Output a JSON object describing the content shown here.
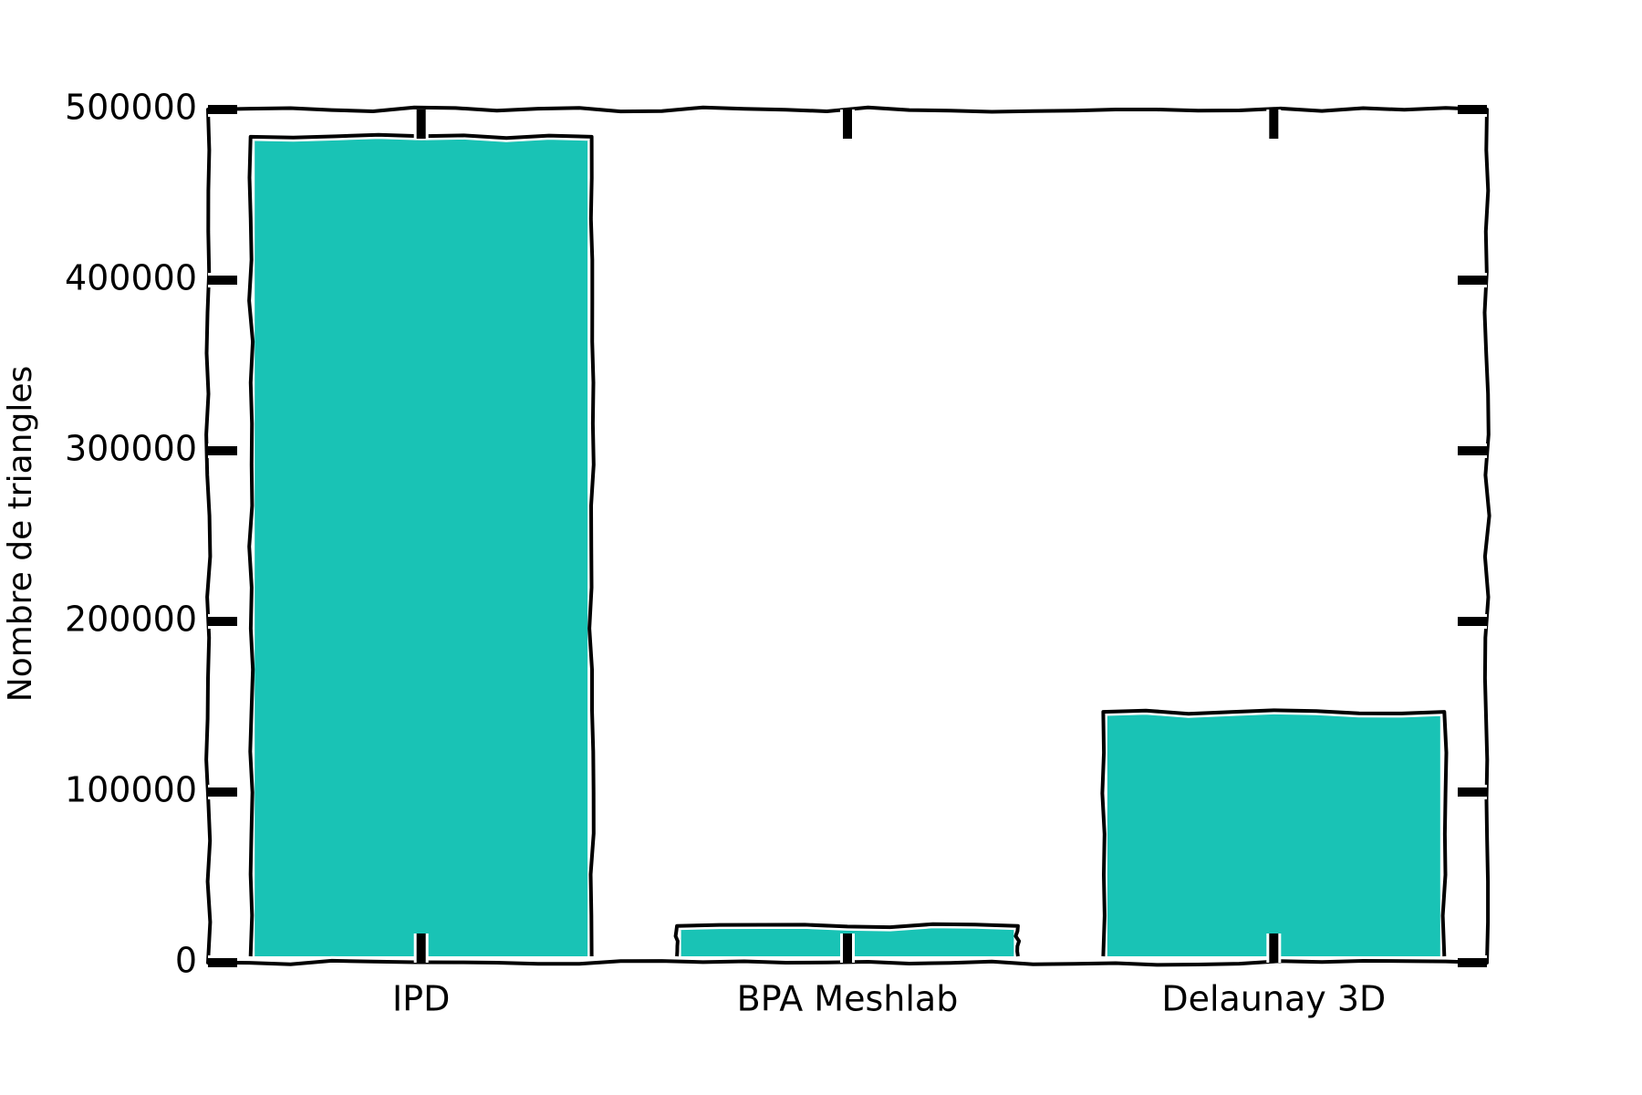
{
  "chart_data": {
    "type": "bar",
    "categories": [
      "IPD",
      "BPA Meshlab",
      "Delaunay 3D"
    ],
    "values": [
      484000,
      21500,
      147000
    ],
    "title": "",
    "xlabel": "",
    "ylabel": "Nombre de triangles",
    "ylim": [
      0,
      500000
    ],
    "yticks": [
      0,
      100000,
      200000,
      300000,
      400000,
      500000
    ],
    "ytick_labels": [
      "0",
      "100000",
      "200000",
      "300000",
      "400000",
      "500000"
    ],
    "style": "xkcd",
    "grid": false,
    "legend": "none",
    "colors": {
      "bar": "#19c3b5",
      "axis": "#000000",
      "background": "#ffffff"
    }
  }
}
